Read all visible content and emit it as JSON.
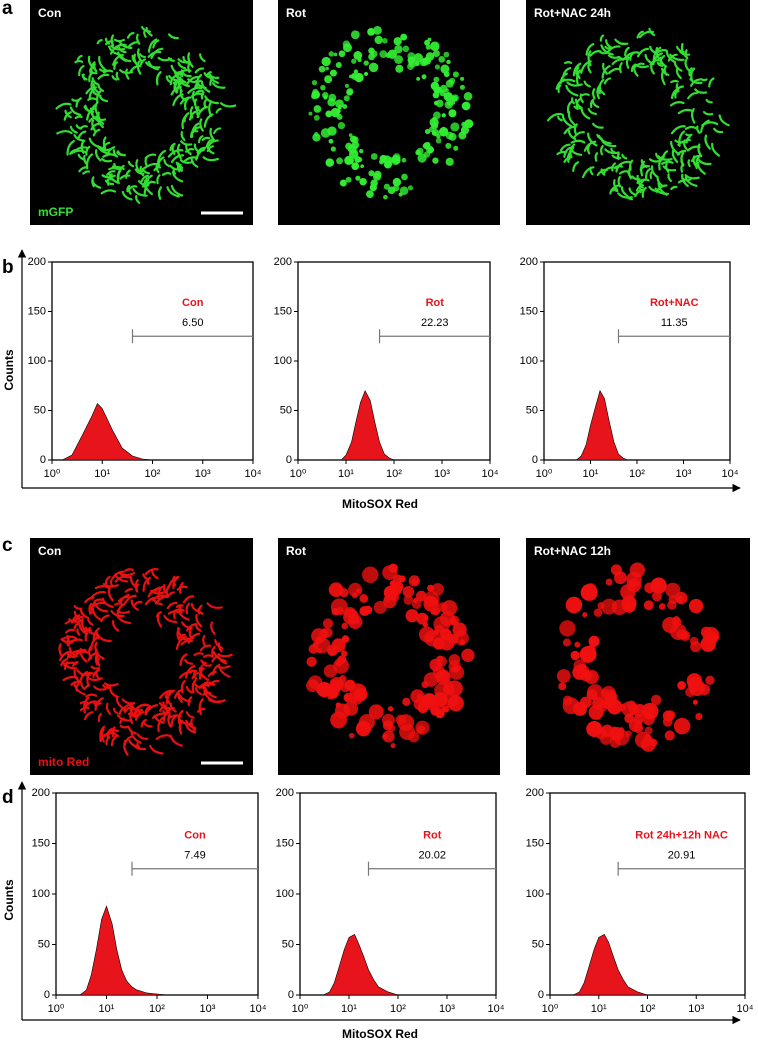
{
  "figure": {
    "panel_a": {
      "letter": "a",
      "images": [
        "Con",
        "Rot",
        "Rot+NAC 24h"
      ],
      "stain": "mGFP"
    },
    "panel_b": {
      "letter": "b",
      "ylabel": "Counts",
      "xlabel": "MitoSOX Red"
    },
    "panel_c": {
      "letter": "c",
      "images": [
        "Con",
        "Rot",
        "Rot+NAC 12h"
      ],
      "stain": "mito Red"
    },
    "panel_d": {
      "letter": "d",
      "ylabel": "Counts",
      "xlabel": "MitoSOX Red"
    }
  },
  "chart_data": [
    {
      "type": "histogram",
      "annotation": "Con",
      "annotation_color": "#e8141b",
      "color": "#e8141b",
      "xscale": "log",
      "x": [
        1.6,
        2.5,
        4,
        6.3,
        8,
        10,
        16,
        25,
        40,
        63,
        100
      ],
      "values": [
        0,
        5,
        25,
        45,
        57,
        52,
        30,
        12,
        4,
        1,
        0
      ],
      "xlim": [
        1,
        10000
      ],
      "ylim": [
        0,
        200
      ],
      "xticks": [
        {
          "value": 1,
          "label": "10⁰"
        },
        {
          "value": 10,
          "label": "10¹"
        },
        {
          "value": 100,
          "label": "10²"
        },
        {
          "value": 1000,
          "label": "10³"
        },
        {
          "value": 10000,
          "label": "10⁴"
        }
      ],
      "yticks": [
        0,
        50,
        100,
        150,
        200
      ],
      "gate": {
        "x": [
          40,
          10000
        ],
        "y": 125,
        "label": "6.50"
      }
    },
    {
      "type": "histogram",
      "annotation": "Rot",
      "annotation_color": "#e8141b",
      "color": "#e8141b",
      "xscale": "log",
      "x": [
        8,
        10,
        13,
        16,
        20,
        25,
        32,
        40,
        50,
        63,
        80,
        100
      ],
      "values": [
        0,
        5,
        18,
        38,
        58,
        70,
        60,
        38,
        18,
        6,
        2,
        0
      ],
      "xlim": [
        1,
        10000
      ],
      "ylim": [
        0,
        200
      ],
      "xticks": [
        {
          "value": 1,
          "label": "10⁰"
        },
        {
          "value": 10,
          "label": "10¹"
        },
        {
          "value": 100,
          "label": "10²"
        },
        {
          "value": 1000,
          "label": "10³"
        },
        {
          "value": 10000,
          "label": "10⁴"
        }
      ],
      "yticks": [
        0,
        50,
        100,
        150,
        200
      ],
      "gate": {
        "x": [
          50,
          10000
        ],
        "y": 125,
        "label": "22.23"
      }
    },
    {
      "type": "histogram",
      "annotation": "Rot+NAC",
      "annotation_color": "#e8141b",
      "color": "#e8141b",
      "xscale": "log",
      "x": [
        5,
        6.3,
        8,
        10,
        13,
        16,
        20,
        25,
        32,
        40,
        50,
        63
      ],
      "values": [
        0,
        4,
        15,
        35,
        55,
        70,
        62,
        40,
        18,
        6,
        2,
        0
      ],
      "xlim": [
        1,
        10000
      ],
      "ylim": [
        0,
        200
      ],
      "xticks": [
        {
          "value": 1,
          "label": "10⁰"
        },
        {
          "value": 10,
          "label": "10¹"
        },
        {
          "value": 100,
          "label": "10²"
        },
        {
          "value": 1000,
          "label": "10³"
        },
        {
          "value": 10000,
          "label": "10⁴"
        }
      ],
      "yticks": [
        0,
        50,
        100,
        150,
        200
      ],
      "gate": {
        "x": [
          40,
          10000
        ],
        "y": 125,
        "label": "11.35"
      }
    },
    {
      "type": "histogram",
      "annotation": "Con",
      "annotation_color": "#e8141b",
      "color": "#e8141b",
      "xscale": "log",
      "x": [
        3,
        4,
        5,
        6.3,
        8,
        10,
        13,
        16,
        20,
        25,
        32,
        40,
        63,
        100,
        160
      ],
      "values": [
        0,
        5,
        20,
        45,
        75,
        88,
        70,
        45,
        25,
        14,
        8,
        5,
        2,
        1,
        0
      ],
      "xlim": [
        1,
        10000
      ],
      "ylim": [
        0,
        200
      ],
      "xticks": [
        {
          "value": 1,
          "label": "10⁰"
        },
        {
          "value": 10,
          "label": "10¹"
        },
        {
          "value": 100,
          "label": "10²"
        },
        {
          "value": 1000,
          "label": "10³"
        },
        {
          "value": 10000,
          "label": "10⁴"
        }
      ],
      "yticks": [
        0,
        50,
        100,
        150,
        200
      ],
      "gate": {
        "x": [
          32,
          10000
        ],
        "y": 125,
        "label": "7.49"
      }
    },
    {
      "type": "histogram",
      "annotation": "Rot",
      "annotation_color": "#e8141b",
      "color": "#e8141b",
      "xscale": "log",
      "x": [
        3,
        4,
        5,
        6.3,
        8,
        10,
        13,
        16,
        20,
        25,
        32,
        40,
        63,
        100
      ],
      "values": [
        0,
        3,
        12,
        28,
        45,
        57,
        60,
        50,
        38,
        25,
        15,
        8,
        3,
        0
      ],
      "xlim": [
        1,
        10000
      ],
      "ylim": [
        0,
        200
      ],
      "xticks": [
        {
          "value": 1,
          "label": "10⁰"
        },
        {
          "value": 10,
          "label": "10¹"
        },
        {
          "value": 100,
          "label": "10²"
        },
        {
          "value": 1000,
          "label": "10³"
        },
        {
          "value": 10000,
          "label": "10⁴"
        }
      ],
      "yticks": [
        0,
        50,
        100,
        150,
        200
      ],
      "gate": {
        "x": [
          25,
          10000
        ],
        "y": 125,
        "label": "20.02"
      }
    },
    {
      "type": "histogram",
      "annotation": "Rot 24h+12h NAC",
      "annotation_color": "#e8141b",
      "color": "#e8141b",
      "xscale": "log",
      "x": [
        3,
        4,
        5,
        6.3,
        8,
        10,
        13,
        16,
        20,
        25,
        32,
        40,
        63,
        100
      ],
      "values": [
        0,
        3,
        12,
        28,
        45,
        57,
        60,
        52,
        38,
        25,
        15,
        8,
        3,
        0
      ],
      "xlim": [
        1,
        10000
      ],
      "ylim": [
        0,
        200
      ],
      "xticks": [
        {
          "value": 1,
          "label": "10⁰"
        },
        {
          "value": 10,
          "label": "10¹"
        },
        {
          "value": 100,
          "label": "10²"
        },
        {
          "value": 1000,
          "label": "10³"
        },
        {
          "value": 10000,
          "label": "10⁴"
        }
      ],
      "yticks": [
        0,
        50,
        100,
        150,
        200
      ],
      "gate": {
        "x": [
          25,
          10000
        ],
        "y": 125,
        "label": "20.91"
      }
    }
  ]
}
